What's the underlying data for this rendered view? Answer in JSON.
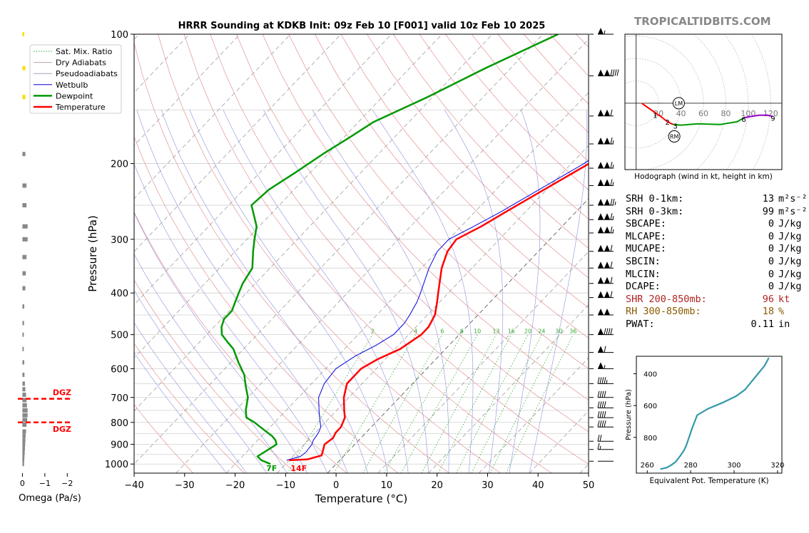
{
  "site_logo": "TROPICALTIDBITS.COM",
  "chart_data": [
    {
      "type": "line",
      "name": "skewt",
      "title": "HRRR Sounding at KDKB Init: 09z Feb 10 [F001] valid 10z Feb 10 2025",
      "xlabel": "Temperature (°C)",
      "ylabel": "Pressure (hPa)",
      "xlim": [
        -40,
        50
      ],
      "ylim": [
        1050,
        100
      ],
      "yscale": "log",
      "x_ticks": [
        -40,
        -30,
        -20,
        -10,
        0,
        10,
        20,
        30,
        40,
        50
      ],
      "y_ticks": [
        100,
        200,
        300,
        400,
        500,
        600,
        700,
        800,
        900,
        1000
      ],
      "legend": [
        "Sat. Mix. Ratio",
        "Dry Adiabats",
        "Pseudoadiabats",
        "Wetbulb",
        "Dewpoint",
        "Temperature"
      ],
      "legend_position": "top-left",
      "colors": {
        "temperature": "#ff0000",
        "dewpoint": "#009900",
        "wetbulb": "#0000dd",
        "dry_adiabat": "#e08080",
        "moist_adiabat": "#9090e0",
        "mixing_ratio": "#33aa33",
        "isotherm": "#999999"
      },
      "mixing_ratio_labels": [
        "2",
        "4",
        "6",
        "8",
        "10",
        "13",
        "16",
        "20",
        "24",
        "30",
        "36"
      ],
      "mixing_ratio_values": [
        2,
        4,
        6,
        8,
        10,
        13,
        16,
        20,
        24,
        30,
        36
      ],
      "series": [
        {
          "name": "Temperature",
          "p": [
            980,
            975,
            955,
            935,
            900,
            870,
            845,
            820,
            800,
            780,
            750,
            700,
            650,
            600,
            570,
            540,
            500,
            480,
            450,
            420,
            400,
            350,
            320,
            300,
            280,
            260,
            230,
            200,
            180,
            150,
            120,
            100
          ],
          "t": [
            -10,
            -6.5,
            -4.5,
            -5,
            -6,
            -5.5,
            -6,
            -6,
            -6.5,
            -7,
            -8.5,
            -11,
            -13,
            -13,
            -11.5,
            -9,
            -7.5,
            -7.5,
            -8.5,
            -10.5,
            -12,
            -16,
            -18,
            -18.5,
            -16,
            -14,
            -10.5,
            -6.5,
            -4.5,
            -3,
            -2,
            5
          ]
        },
        {
          "name": "Dewpoint",
          "p": [
            1000,
            980,
            960,
            940,
            900,
            880,
            860,
            840,
            820,
            800,
            780,
            750,
            700,
            660,
            620,
            580,
            540,
            520,
            500,
            480,
            460,
            440,
            420,
            400,
            380,
            350,
            320,
            300,
            280,
            250,
            230,
            210,
            190,
            175,
            160,
            140,
            120,
            100
          ],
          "t": [
            -13,
            -15.5,
            -17,
            -16.5,
            -15.5,
            -16.5,
            -18,
            -20,
            -22,
            -24,
            -26.5,
            -28,
            -30,
            -32.5,
            -35,
            -38.5,
            -42,
            -44.5,
            -47,
            -48.5,
            -49.5,
            -49.5,
            -50.5,
            -51.5,
            -52.5,
            -53.5,
            -56.5,
            -58.5,
            -60.5,
            -65.5,
            -65,
            -63,
            -61,
            -59,
            -57,
            -51,
            -45,
            -37
          ]
        },
        {
          "name": "Wetbulb",
          "p": [
            980,
            960,
            940,
            900,
            880,
            860,
            840,
            820,
            800,
            780,
            750,
            700,
            650,
            600,
            560,
            530,
            500,
            470,
            450,
            420,
            400,
            350,
            320,
            300,
            280,
            260,
            230,
            200,
            180,
            150,
            120,
            100
          ],
          "t": [
            -10.5,
            -8.5,
            -8.2,
            -8.5,
            -9,
            -9.2,
            -9.5,
            -10,
            -11,
            -12,
            -13.5,
            -16,
            -17.5,
            -18,
            -16.5,
            -14.5,
            -13,
            -13,
            -13.5,
            -14.5,
            -15.5,
            -18.5,
            -20,
            -20,
            -17.5,
            -15,
            -11.5,
            -7.5,
            -5.5,
            -3.5,
            -2.5,
            4.5
          ]
        }
      ],
      "surface_labels": {
        "dewpoint": "7F",
        "temperature": "14F"
      },
      "wind_barbs": [
        {
          "p": 985,
          "kt": 3
        },
        {
          "p": 925,
          "kt": 15
        },
        {
          "p": 885,
          "kt": 20
        },
        {
          "p": 820,
          "kt": 40
        },
        {
          "p": 780,
          "kt": 40
        },
        {
          "p": 740,
          "kt": 40
        },
        {
          "p": 700,
          "kt": 40
        },
        {
          "p": 650,
          "kt": 45
        },
        {
          "p": 600,
          "kt": 55
        },
        {
          "p": 550,
          "kt": 60
        },
        {
          "p": 500,
          "kt": 90
        },
        {
          "p": 450,
          "kt": 100
        },
        {
          "p": 410,
          "kt": 110
        },
        {
          "p": 380,
          "kt": 110
        },
        {
          "p": 350,
          "kt": 110
        },
        {
          "p": 320,
          "kt": 110
        },
        {
          "p": 290,
          "kt": 115
        },
        {
          "p": 270,
          "kt": 115
        },
        {
          "p": 250,
          "kt": 125
        },
        {
          "p": 225,
          "kt": 115
        },
        {
          "p": 205,
          "kt": 115
        },
        {
          "p": 180,
          "kt": 115
        },
        {
          "p": 155,
          "kt": 110
        },
        {
          "p": 125,
          "kt": 140
        },
        {
          "p": 100,
          "kt": 55
        }
      ]
    },
    {
      "type": "bar",
      "name": "omega",
      "xlabel": "Omega (Pa/s)",
      "x_ticks": [
        "0",
        "−1",
        "−2"
      ],
      "xlim": [
        0.3,
        -2.5
      ],
      "dgz_label": "DGZ",
      "dgz_levels": [
        705,
        800
      ],
      "p": [
        100,
        120,
        140,
        190,
        225,
        250,
        280,
        300,
        330,
        360,
        390,
        430,
        470,
        500,
        540,
        580,
        620,
        650,
        670,
        690,
        710,
        730,
        750,
        770,
        790,
        810,
        840,
        860,
        880,
        900,
        920,
        940,
        960,
        980,
        1000
      ],
      "omega": [
        -0.05,
        -0.1,
        -0.1,
        -0.1,
        -0.15,
        -0.15,
        -0.2,
        -0.2,
        -0.15,
        -0.12,
        -0.1,
        -0.05,
        -0.04,
        -0.03,
        -0.03,
        -0.05,
        -0.06,
        -0.08,
        -0.1,
        -0.13,
        -0.15,
        -0.17,
        -0.2,
        -0.2,
        -0.18,
        -0.15,
        -0.13,
        -0.11,
        -0.1,
        -0.09,
        -0.08,
        -0.07,
        -0.06,
        -0.05,
        -0.04
      ],
      "colors": {
        "upper": "#ffdd00",
        "lower": "#888888",
        "dgz": "#ff0000"
      }
    },
    {
      "type": "line",
      "name": "hodograph",
      "xlabel": "Hodograph (wind in kt, height in km)",
      "ring_labels": [
        "20",
        "40",
        "60",
        "80",
        "100",
        "120"
      ],
      "ring_values": [
        20,
        40,
        60,
        80,
        100,
        120
      ],
      "xlim": [
        -10,
        130
      ],
      "ylim": [
        -50,
        52
      ],
      "segments": [
        {
          "color": "#ff0000",
          "points": [
            [
              5,
              0
            ],
            [
              15,
              -6
            ],
            [
              22,
              -10
            ],
            [
              28,
              -14
            ],
            [
              33,
              -16
            ]
          ]
        },
        {
          "color": "#009900",
          "points": [
            [
              33,
              -16
            ],
            [
              40,
              -16.5
            ],
            [
              55,
              -15.5
            ],
            [
              75,
              -16
            ],
            [
              90,
              -14
            ],
            [
              96,
              -11
            ]
          ]
        },
        {
          "color": "#9900cc",
          "points": [
            [
              96,
              -11
            ],
            [
              102,
              -10
            ],
            [
              110,
              -9
            ],
            [
              117,
              -9
            ],
            [
              122,
              -10
            ]
          ]
        }
      ],
      "height_labels": [
        {
          "text": "1",
          "u": 17,
          "v": -9
        },
        {
          "text": "2",
          "u": 28,
          "v": -14
        },
        {
          "text": "3",
          "u": 35,
          "v": -17
        },
        {
          "text": "6",
          "u": 96,
          "v": -12
        },
        {
          "text": "9",
          "u": 122,
          "v": -11
        }
      ],
      "markers": [
        {
          "text": "LM",
          "u": 38,
          "v": 0
        },
        {
          "text": "RM",
          "u": 34,
          "v": -25
        }
      ]
    },
    {
      "type": "line",
      "name": "theta-e",
      "xlabel": "Equivalent Pot. Temperature (K)",
      "ylabel": "Pressure (hPa)",
      "xlim": [
        255,
        322
      ],
      "ylim": [
        1025,
        290
      ],
      "x_ticks": [
        260,
        280,
        300,
        320
      ],
      "y_ticks": [
        400,
        600,
        800
      ],
      "color": "#3399aa",
      "theta_e": [
        266,
        269,
        271,
        273,
        275,
        277,
        278,
        279,
        280,
        281,
        283,
        288,
        295,
        301,
        305,
        308,
        311,
        314,
        316
      ],
      "p": [
        1000,
        990,
        975,
        955,
        920,
        880,
        850,
        810,
        770,
        730,
        660,
        620,
        580,
        540,
        500,
        450,
        400,
        350,
        300
      ]
    }
  ],
  "params": [
    {
      "label": "SRH 0-1km:",
      "value": "13",
      "unit": "m²s⁻²",
      "color": "#000000"
    },
    {
      "label": "SRH 0-3km:",
      "value": "99",
      "unit": "m²s⁻²",
      "color": "#000000"
    },
    {
      "label": "SBCAPE:",
      "value": "0",
      "unit": "J/kg",
      "color": "#000000"
    },
    {
      "label": "MLCAPE:",
      "value": "0",
      "unit": "J/kg",
      "color": "#000000"
    },
    {
      "label": "MUCAPE:",
      "value": "0",
      "unit": "J/kg",
      "color": "#000000"
    },
    {
      "label": "SBCIN:",
      "value": "0",
      "unit": "J/kg",
      "color": "#000000"
    },
    {
      "label": "MLCIN:",
      "value": "0",
      "unit": "J/kg",
      "color": "#000000"
    },
    {
      "label": "DCAPE:",
      "value": "0",
      "unit": "J/kg",
      "color": "#000000"
    },
    {
      "label": "SHR 200-850mb:",
      "value": "96",
      "unit": "kt",
      "color": "#b22222"
    },
    {
      "label": "RH 300-850mb:",
      "value": "18",
      "unit": "%",
      "color": "#8b5a00"
    },
    {
      "label": "PWAT:",
      "value": "0.11",
      "unit": "in",
      "color": "#000000"
    }
  ]
}
